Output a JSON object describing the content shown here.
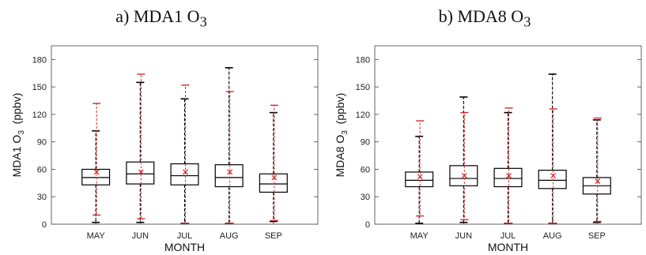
{
  "chart_data": [
    {
      "type": "box",
      "title": "a) MDA1 O",
      "title_sub": "3",
      "ylabel": "MDA1 O",
      "ylabel_sub": "3",
      "ylabel_unit": "(ppbv)",
      "xlabel": "MONTH",
      "categories": [
        "MAY",
        "JUN",
        "JUL",
        "AUG",
        "SEP"
      ],
      "ylim": [
        0,
        195
      ],
      "yticks": [
        0,
        30,
        60,
        90,
        120,
        150,
        180
      ],
      "ytick_labels": [
        "0",
        "30",
        "60",
        "90",
        "120",
        "150",
        "180"
      ],
      "series": [
        {
          "color": "#000000",
          "stats": [
            {
              "min": 2,
              "q1": 43,
              "median": 51,
              "q3": 60,
              "max": 102
            },
            {
              "min": 2,
              "q1": 44,
              "median": 55,
              "q3": 68,
              "max": 155
            },
            {
              "min": 1,
              "q1": 43,
              "median": 53,
              "q3": 66,
              "max": 137
            },
            {
              "min": 1,
              "q1": 41,
              "median": 51,
              "q3": 65,
              "max": 171
            },
            {
              "min": 3,
              "q1": 35,
              "median": 44,
              "q3": 55,
              "max": 122
            }
          ]
        },
        {
          "color": "#d62728",
          "stats": [
            {
              "min": 10,
              "mean": 57,
              "max": 132
            },
            {
              "min": 6,
              "mean": 57,
              "max": 164
            },
            {
              "min": 1,
              "mean": 57,
              "max": 152
            },
            {
              "min": 1,
              "mean": 57,
              "max": 145
            },
            {
              "min": 4,
              "mean": 51,
              "max": 130
            }
          ]
        }
      ]
    },
    {
      "type": "box",
      "title": "b) MDA8 O",
      "title_sub": "3",
      "ylabel": "MDA8 O",
      "ylabel_sub": "3",
      "ylabel_unit": "(ppbv)",
      "xlabel": "MONTH",
      "categories": [
        "MAY",
        "JUN",
        "JUL",
        "AUG",
        "SEP"
      ],
      "ylim": [
        0,
        195
      ],
      "yticks": [
        0,
        30,
        60,
        90,
        120,
        150,
        180
      ],
      "ytick_labels": [
        "0",
        "30",
        "60",
        "90",
        "120",
        "150",
        "180"
      ],
      "series": [
        {
          "color": "#000000",
          "stats": [
            {
              "min": 1,
              "q1": 41,
              "median": 48,
              "q3": 57,
              "max": 96
            },
            {
              "min": 2,
              "q1": 42,
              "median": 50,
              "q3": 64,
              "max": 139
            },
            {
              "min": 1,
              "q1": 41,
              "median": 50,
              "q3": 61,
              "max": 122
            },
            {
              "min": 1,
              "q1": 39,
              "median": 48,
              "q3": 59,
              "max": 164
            },
            {
              "min": 2,
              "q1": 33,
              "median": 42,
              "q3": 51,
              "max": 114
            }
          ]
        },
        {
          "color": "#d62728",
          "stats": [
            {
              "min": 9,
              "mean": 52,
              "max": 113
            },
            {
              "min": 5,
              "mean": 53,
              "max": 122
            },
            {
              "min": 1,
              "mean": 53,
              "max": 127
            },
            {
              "min": 1,
              "mean": 53,
              "max": 126
            },
            {
              "min": 3,
              "mean": 47,
              "max": 116
            }
          ]
        }
      ]
    }
  ]
}
